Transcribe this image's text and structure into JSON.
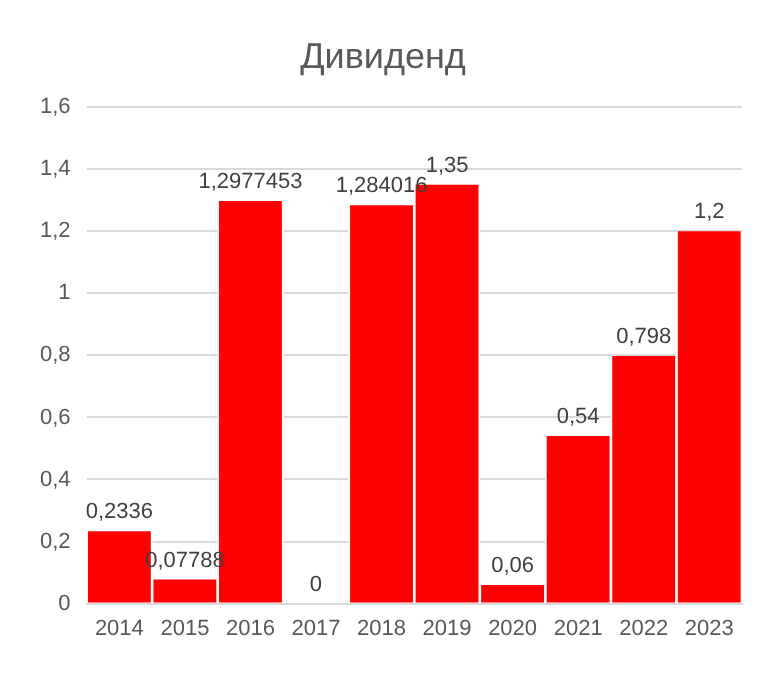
{
  "chart_data": {
    "type": "bar",
    "title": "Дивиденд",
    "categories": [
      "2014",
      "2015",
      "2016",
      "2017",
      "2018",
      "2019",
      "2020",
      "2021",
      "2022",
      "2023"
    ],
    "values": [
      0.2336,
      0.07788,
      1.2977453,
      0,
      1.284016,
      1.35,
      0.06,
      0.54,
      0.798,
      1.2
    ],
    "value_labels": [
      "0,2336",
      "0,07788",
      "1,2977453",
      "0",
      "1,284016",
      "1,35",
      "0,06",
      "0,54",
      "0,798",
      "1,2"
    ],
    "color": "#ff0000",
    "ylim": [
      0,
      1.6
    ],
    "yticks": [
      {
        "value": 0,
        "label": "0"
      },
      {
        "value": 0.2,
        "label": "0,2"
      },
      {
        "value": 0.4,
        "label": "0,4"
      },
      {
        "value": 0.6,
        "label": "0,6"
      },
      {
        "value": 0.8,
        "label": "0,8"
      },
      {
        "value": 1,
        "label": "1"
      },
      {
        "value": 1.2,
        "label": "1,2"
      },
      {
        "value": 1.4,
        "label": "1,4"
      },
      {
        "value": 1.6,
        "label": "1,6"
      }
    ],
    "grid": "y",
    "legend": false
  }
}
